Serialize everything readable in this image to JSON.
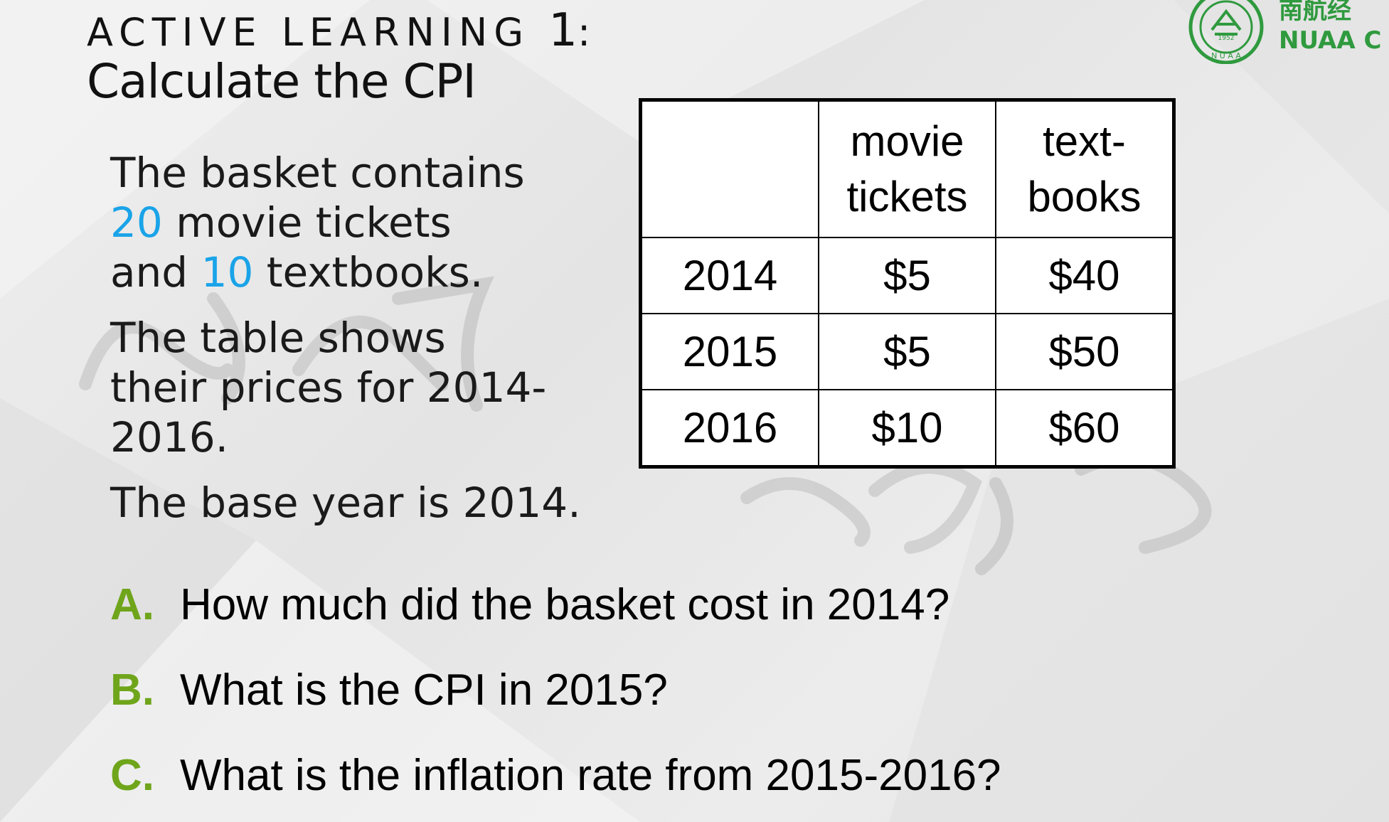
{
  "title": {
    "line1_text": "ACTIVE LEARNING",
    "line1_number": "1",
    "line1_suffix": ":",
    "line2": "Calculate the CPI"
  },
  "intro": {
    "basket_prefix": "The basket contains",
    "qty_movie": "20",
    "movie_suffix": " movie tickets",
    "and_word": "and ",
    "qty_books": "10",
    "books_suffix": " textbooks.",
    "table_sentence": "The table shows their prices for 2014-2016.",
    "base_year_sentence": "The base year is 2014."
  },
  "table": {
    "headers": [
      "",
      "movie tickets",
      "text-books"
    ],
    "header_line1": [
      "movie",
      "text-"
    ],
    "header_line2": [
      "tickets",
      "books"
    ],
    "rows": [
      {
        "year": "2014",
        "movie": "$5",
        "books": "$40"
      },
      {
        "year": "2015",
        "movie": "$5",
        "books": "$50"
      },
      {
        "year": "2016",
        "movie": "$10",
        "books": "$60"
      }
    ]
  },
  "questions": [
    {
      "letter": "A.",
      "text": "How much did the basket cost in 2014?"
    },
    {
      "letter": "B.",
      "text": "What is the CPI in 2015?"
    },
    {
      "letter": "C.",
      "text": "What is the inflation rate from 2015-2016?"
    }
  ],
  "logo": {
    "seal_year": "1952",
    "seal_letters": "N U A A",
    "wordmark_cn": "南航经",
    "wordmark_en": "NUAA C"
  },
  "colors": {
    "highlight_blue": "#1aa3e8",
    "answer_letter_green": "#6fa51b",
    "logo_green": "#2f9a3e"
  }
}
